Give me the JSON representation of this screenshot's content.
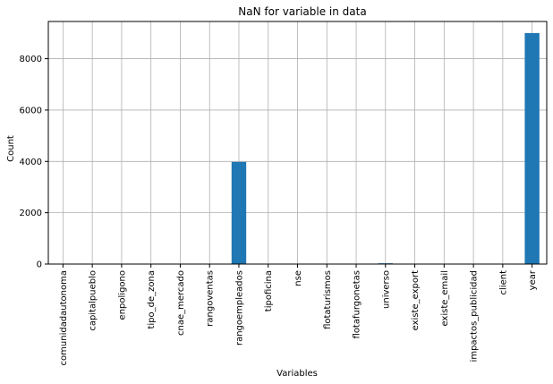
{
  "chart_data": {
    "type": "bar",
    "title": "NaN for variable in data",
    "xlabel": "Variables",
    "ylabel": "Count",
    "categories": [
      "comunidadautonoma",
      "capitalpueblo",
      "enpoligono",
      "tipo_de_zona",
      "cnae_mercado",
      "rangoventas",
      "rangoempleados",
      "tipoficina",
      "nse",
      "flotaturismos",
      "flotafurgonetas",
      "universo",
      "existe_export",
      "existe_email",
      "impactos_publicidad",
      "client",
      "year"
    ],
    "values": [
      0,
      0,
      0,
      0,
      0,
      0,
      3980,
      0,
      0,
      0,
      0,
      30,
      0,
      0,
      0,
      0,
      9000
    ],
    "yticks": [
      0,
      2000,
      4000,
      6000,
      8000
    ],
    "ylim": [
      0,
      9450
    ],
    "grid": true,
    "colors": {
      "bar": "#1f77b4",
      "grid": "#b0b0b0",
      "axis": "#000000"
    }
  }
}
